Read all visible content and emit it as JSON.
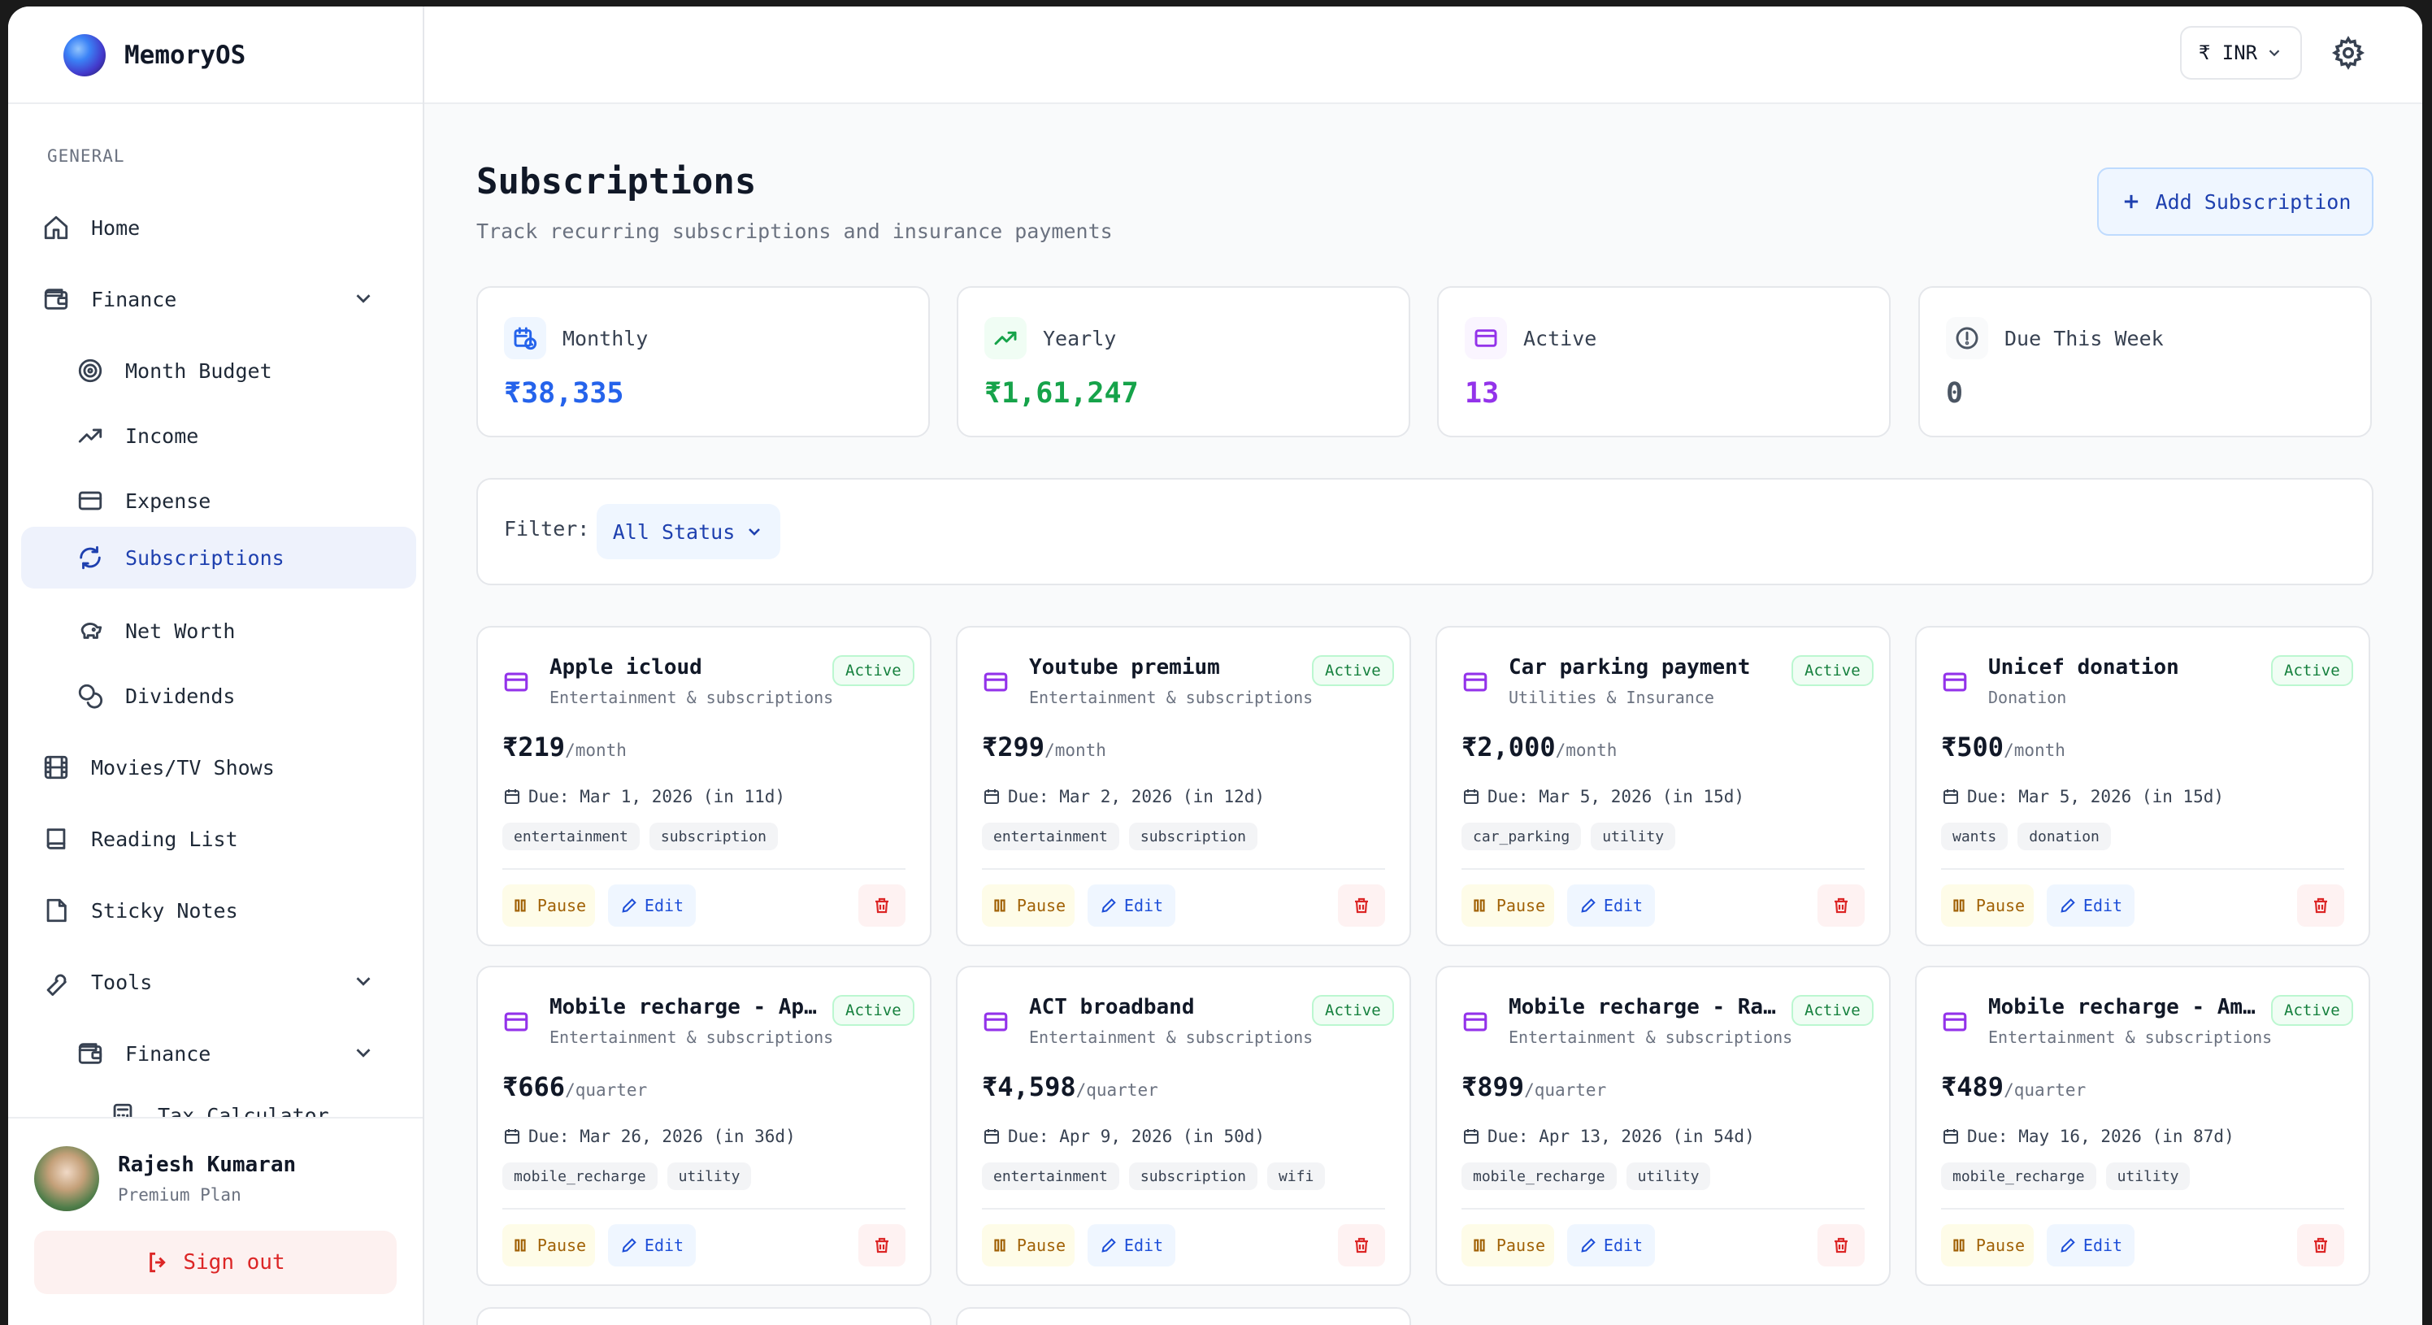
{
  "app": {
    "name": "MemoryOS"
  },
  "sidebar": {
    "section_label": "GENERAL",
    "items": [
      {
        "label": "Home",
        "icon": "home-icon"
      },
      {
        "label": "Finance",
        "icon": "wallet-icon"
      },
      {
        "label": "Month Budget",
        "icon": "target-icon"
      },
      {
        "label": "Income",
        "icon": "trending-up-icon"
      },
      {
        "label": "Expense",
        "icon": "credit-card-icon"
      },
      {
        "label": "Subscriptions",
        "icon": "refresh-icon"
      },
      {
        "label": "Net Worth",
        "icon": "piggy-bank-icon"
      },
      {
        "label": "Dividends",
        "icon": "coins-icon"
      },
      {
        "label": "Movies/TV Shows",
        "icon": "film-icon"
      },
      {
        "label": "Reading List",
        "icon": "book-icon"
      },
      {
        "label": "Sticky Notes",
        "icon": "sticky-note-icon"
      },
      {
        "label": "Tools",
        "icon": "wrench-icon"
      },
      {
        "label": "Finance",
        "icon": "wallet-icon"
      },
      {
        "label": "Tax Calculator",
        "icon": "calculator-icon"
      }
    ]
  },
  "user": {
    "name": "Rajesh Kumaran",
    "plan": "Premium Plan",
    "signout_label": "Sign out"
  },
  "topbar": {
    "currency_label": "₹ INR"
  },
  "page": {
    "title": "Subscriptions",
    "subtitle": "Track recurring subscriptions and insurance payments",
    "add_label": "Add Subscription"
  },
  "stats": [
    {
      "label": "Monthly",
      "value": "₹38,335",
      "color": "#2563eb",
      "bg": "#eff6ff",
      "icon": "calendar-clock-icon"
    },
    {
      "label": "Yearly",
      "value": "₹1,61,247",
      "color": "#16a34a",
      "bg": "#f0fdf4",
      "icon": "trending-up-icon"
    },
    {
      "label": "Active",
      "value": "13",
      "color": "#9333ea",
      "bg": "#faf5ff",
      "icon": "credit-card-icon"
    },
    {
      "label": "Due This Week",
      "value": "0",
      "color": "#4b5563",
      "bg": "#f9fafb",
      "icon": "alert-circle-icon"
    }
  ],
  "filter": {
    "label": "Filter:",
    "value": "All Status"
  },
  "subscriptions": [
    {
      "name": "Apple icloud",
      "category": "Entertainment & subscriptions",
      "status": "Active",
      "amount": "₹219",
      "period": "/month",
      "due": "Due: Mar 1, 2026 (in 11d)",
      "tags": [
        "entertainment",
        "subscription"
      ],
      "pause_label": "Pause",
      "edit_label": "Edit"
    },
    {
      "name": "Youtube premium",
      "category": "Entertainment & subscriptions",
      "status": "Active",
      "amount": "₹299",
      "period": "/month",
      "due": "Due: Mar 2, 2026 (in 12d)",
      "tags": [
        "entertainment",
        "subscription"
      ],
      "pause_label": "Pause",
      "edit_label": "Edit"
    },
    {
      "name": "Car parking payment",
      "category": "Utilities & Insurance",
      "status": "Active",
      "amount": "₹2,000",
      "period": "/month",
      "due": "Due: Mar 5, 2026 (in 15d)",
      "tags": [
        "car_parking",
        "utility"
      ],
      "pause_label": "Pause",
      "edit_label": "Edit"
    },
    {
      "name": "Unicef donation",
      "category": "Donation",
      "status": "Active",
      "amount": "₹500",
      "period": "/month",
      "due": "Due: Mar 5, 2026 (in 15d)",
      "tags": [
        "wants",
        "donation"
      ],
      "pause_label": "Pause",
      "edit_label": "Edit"
    },
    {
      "name": "Mobile recharge - Appa ...",
      "category": "Entertainment & subscriptions",
      "status": "Active",
      "amount": "₹666",
      "period": "/quarter",
      "due": "Due: Mar 26, 2026 (in 36d)",
      "tags": [
        "mobile_recharge",
        "utility"
      ],
      "pause_label": "Pause",
      "edit_label": "Edit"
    },
    {
      "name": "ACT broadband",
      "category": "Entertainment & subscriptions",
      "status": "Active",
      "amount": "₹4,598",
      "period": "/quarter",
      "due": "Due: Apr 9, 2026 (in 50d)",
      "tags": [
        "entertainment",
        "subscription",
        "wifi"
      ],
      "pause_label": "Pause",
      "edit_label": "Edit"
    },
    {
      "name": "Mobile recharge - Rajes...",
      "category": "Entertainment & subscriptions",
      "status": "Active",
      "amount": "₹899",
      "period": "/quarter",
      "due": "Due: Apr 13, 2026 (in 54d)",
      "tags": [
        "mobile_recharge",
        "utility"
      ],
      "pause_label": "Pause",
      "edit_label": "Edit"
    },
    {
      "name": "Mobile recharge - Amma ...",
      "category": "Entertainment & subscriptions",
      "status": "Active",
      "amount": "₹489",
      "period": "/quarter",
      "due": "Due: May 16, 2026 (in 87d)",
      "tags": [
        "mobile_recharge",
        "utility"
      ],
      "pause_label": "Pause",
      "edit_label": "Edit"
    }
  ]
}
